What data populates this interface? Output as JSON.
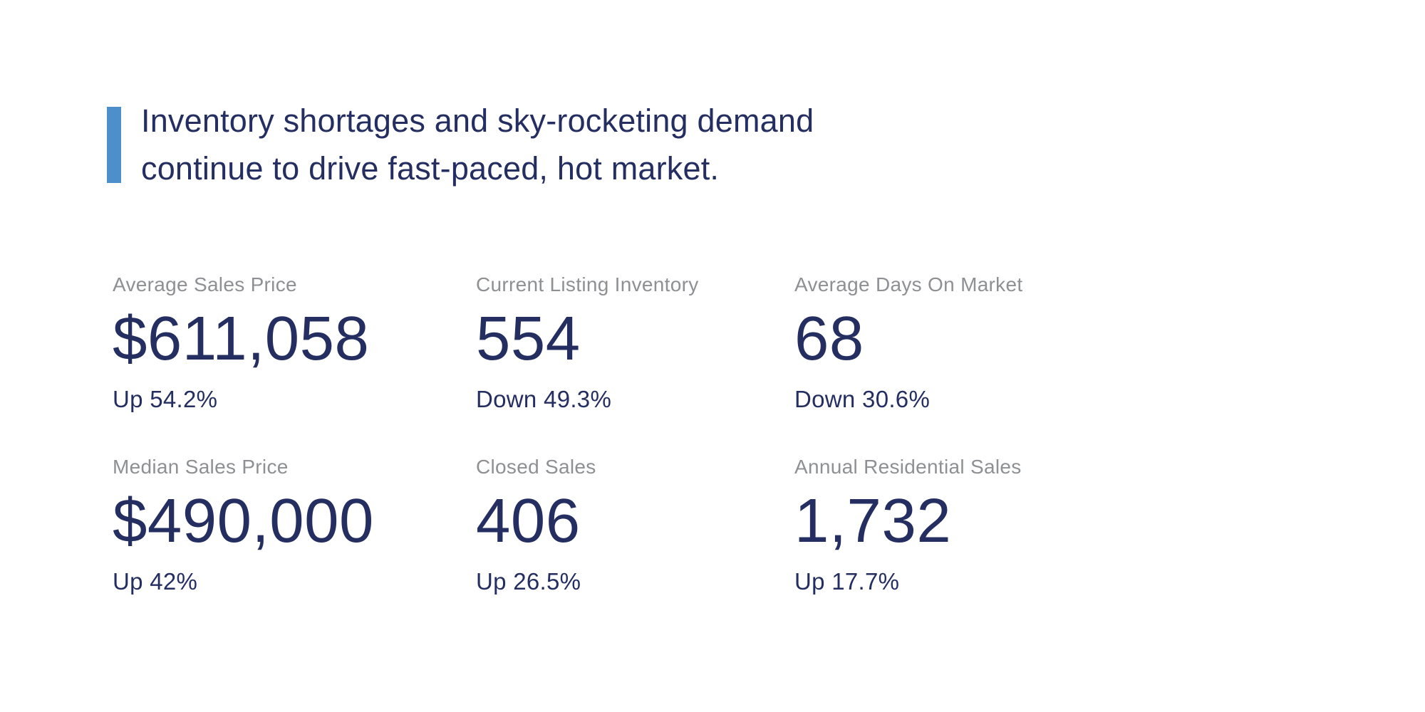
{
  "headline": {
    "line1": "Inventory shortages and sky-rocketing demand",
    "line2": "continue to drive fast-paced, hot market.",
    "accent_color": "#4D8FCA",
    "text_color": "#242E60"
  },
  "stats": {
    "label_color": "#8E9093",
    "value_color": "#242E60",
    "items": [
      {
        "label": "Average Sales Price",
        "value": "$611,058",
        "change": "Up 54.2%"
      },
      {
        "label": "Current Listing Inventory",
        "value": "554",
        "change": "Down 49.3%"
      },
      {
        "label": "Average Days On Market",
        "value": "68",
        "change": "Down 30.6%"
      },
      {
        "label": "Median Sales Price",
        "value": "$490,000",
        "change": "Up 42%"
      },
      {
        "label": "Closed Sales",
        "value": "406",
        "change": "Up 26.5%"
      },
      {
        "label": "Annual Residential Sales",
        "value": "1,732",
        "change": "Up 17.7%"
      }
    ]
  }
}
